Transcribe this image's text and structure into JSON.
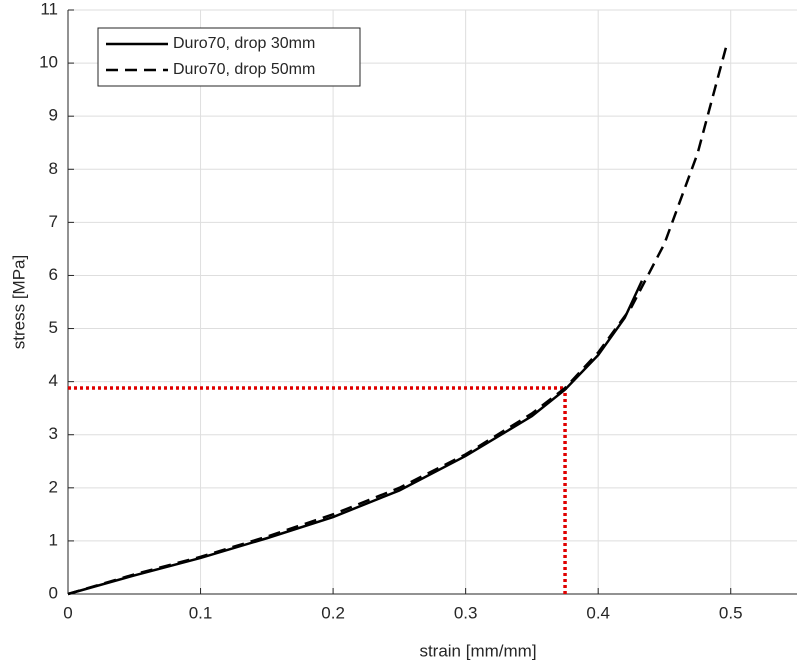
{
  "chart_data": {
    "type": "line",
    "x_label": "strain [mm/mm]",
    "y_label": "stress [MPa]",
    "xlim": [
      0,
      0.55
    ],
    "ylim": [
      0,
      11
    ],
    "xticks": [
      0,
      0.1,
      0.2,
      0.3,
      0.4,
      0.5
    ],
    "yticks": [
      0,
      1,
      2,
      3,
      4,
      5,
      6,
      7,
      8,
      9,
      10,
      11
    ],
    "grid": true,
    "legend": "upper-left",
    "series": [
      {
        "name": "Duro70, drop 30mm",
        "color": "#000000",
        "dash": "solid",
        "x": [
          0,
          0.05,
          0.1,
          0.15,
          0.2,
          0.25,
          0.3,
          0.35,
          0.375,
          0.4,
          0.42,
          0.433
        ],
        "values": [
          0,
          0.35,
          0.68,
          1.05,
          1.45,
          1.95,
          2.6,
          3.35,
          3.85,
          4.5,
          5.2,
          5.9
        ]
      },
      {
        "name": "Duro70, drop 50mm",
        "color": "#000000",
        "dash": "dashed",
        "x": [
          0,
          0.05,
          0.1,
          0.15,
          0.2,
          0.25,
          0.3,
          0.35,
          0.375,
          0.4,
          0.425,
          0.45,
          0.475,
          0.497
        ],
        "values": [
          0,
          0.37,
          0.7,
          1.08,
          1.5,
          2.0,
          2.63,
          3.4,
          3.88,
          4.55,
          5.4,
          6.6,
          8.3,
          10.35
        ]
      }
    ],
    "reference_point": {
      "x": 0.375,
      "y": 3.88,
      "color": "#e00000"
    }
  }
}
